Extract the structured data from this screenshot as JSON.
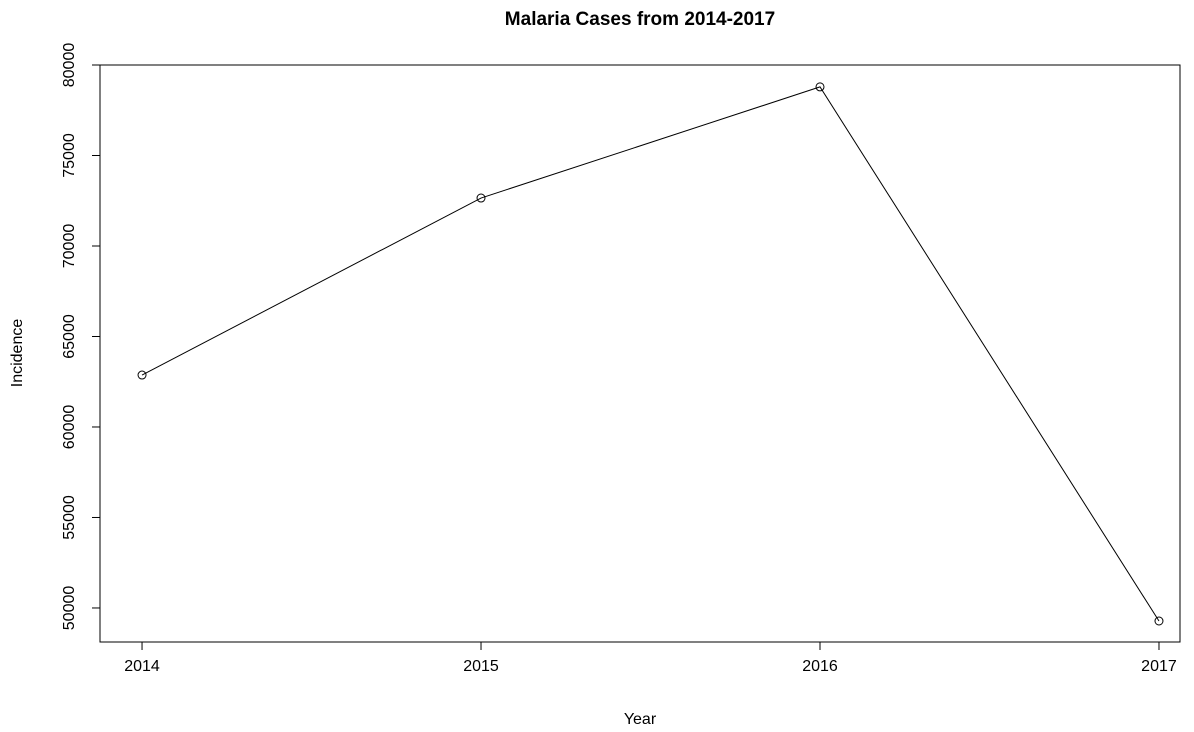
{
  "chart_data": {
    "type": "line",
    "title": "Malaria Cases from 2014-2017",
    "x_label": "Year",
    "y_label": "Incidence",
    "x": [
      2014,
      2015,
      2016,
      2017
    ],
    "series": [
      {
        "name": "Incidence",
        "color": "#000000",
        "values": [
          62870,
          72650,
          78790,
          49280
        ]
      }
    ],
    "xlim": [
      2013.876,
      2017.062
    ],
    "xticks": [
      2014,
      2015,
      2016,
      2017
    ],
    "ylim": [
      48120,
      80000
    ],
    "yticks": [
      50000,
      55000,
      60000,
      65000,
      70000,
      75000,
      80000
    ],
    "markers": true
  }
}
